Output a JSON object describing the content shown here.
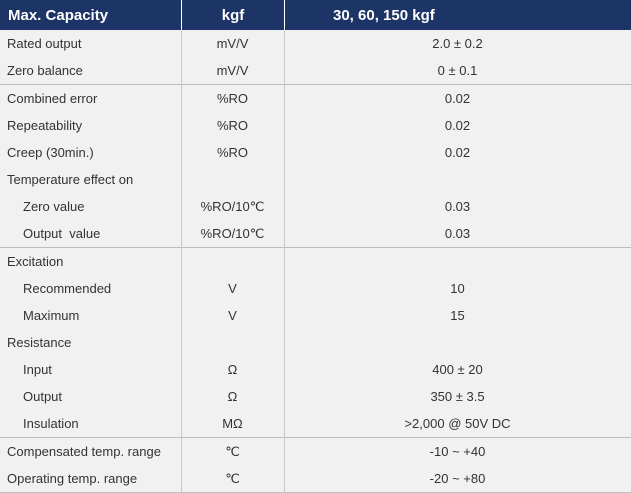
{
  "header": {
    "parameter": "Max. Capacity",
    "unit": "kgf",
    "value": "30, 60, 150 kgf"
  },
  "groups": [
    {
      "rows": [
        {
          "parameter": "Rated output",
          "unit": "mV/V",
          "value": "2.0 ± 0.2"
        },
        {
          "parameter": "Zero balance",
          "unit": "mV/V",
          "value": "0 ± 0.1"
        }
      ]
    },
    {
      "rows": [
        {
          "parameter": "Combined error",
          "unit": "%RO",
          "value": "0.02"
        },
        {
          "parameter": "Repeatability",
          "unit": "%RO",
          "value": "0.02"
        },
        {
          "parameter": "Creep (30min.)",
          "unit": "%RO",
          "value": "0.02"
        },
        {
          "parameter": "Temperature effect on",
          "unit": "",
          "value": ""
        },
        {
          "parameter": "Zero value",
          "unit": "%RO/10℃",
          "value": "0.03"
        },
        {
          "parameter": "Output  value",
          "unit": "%RO/10℃",
          "value": "0.03"
        }
      ]
    },
    {
      "rows": [
        {
          "parameter": "Excitation",
          "unit": "",
          "value": ""
        },
        {
          "parameter": "Recommended",
          "unit": "V",
          "value": "10"
        },
        {
          "parameter": "Maximum",
          "unit": "V",
          "value": "15"
        },
        {
          "parameter": "Resistance",
          "unit": "",
          "value": ""
        },
        {
          "parameter": "Input",
          "unit": "Ω",
          "value": "400 ± 20"
        },
        {
          "parameter": "Output",
          "unit": "Ω",
          "value": "350 ± 3.5"
        },
        {
          "parameter": "Insulation",
          "unit": "MΩ",
          "value": ">2,000 @ 50V DC"
        }
      ]
    },
    {
      "rows": [
        {
          "parameter": "Compensated temp. range",
          "unit": "℃",
          "value": "-10 ~ +40"
        },
        {
          "parameter": "Operating temp. range",
          "unit": "℃",
          "value": "-20 ~ +80"
        }
      ]
    }
  ]
}
